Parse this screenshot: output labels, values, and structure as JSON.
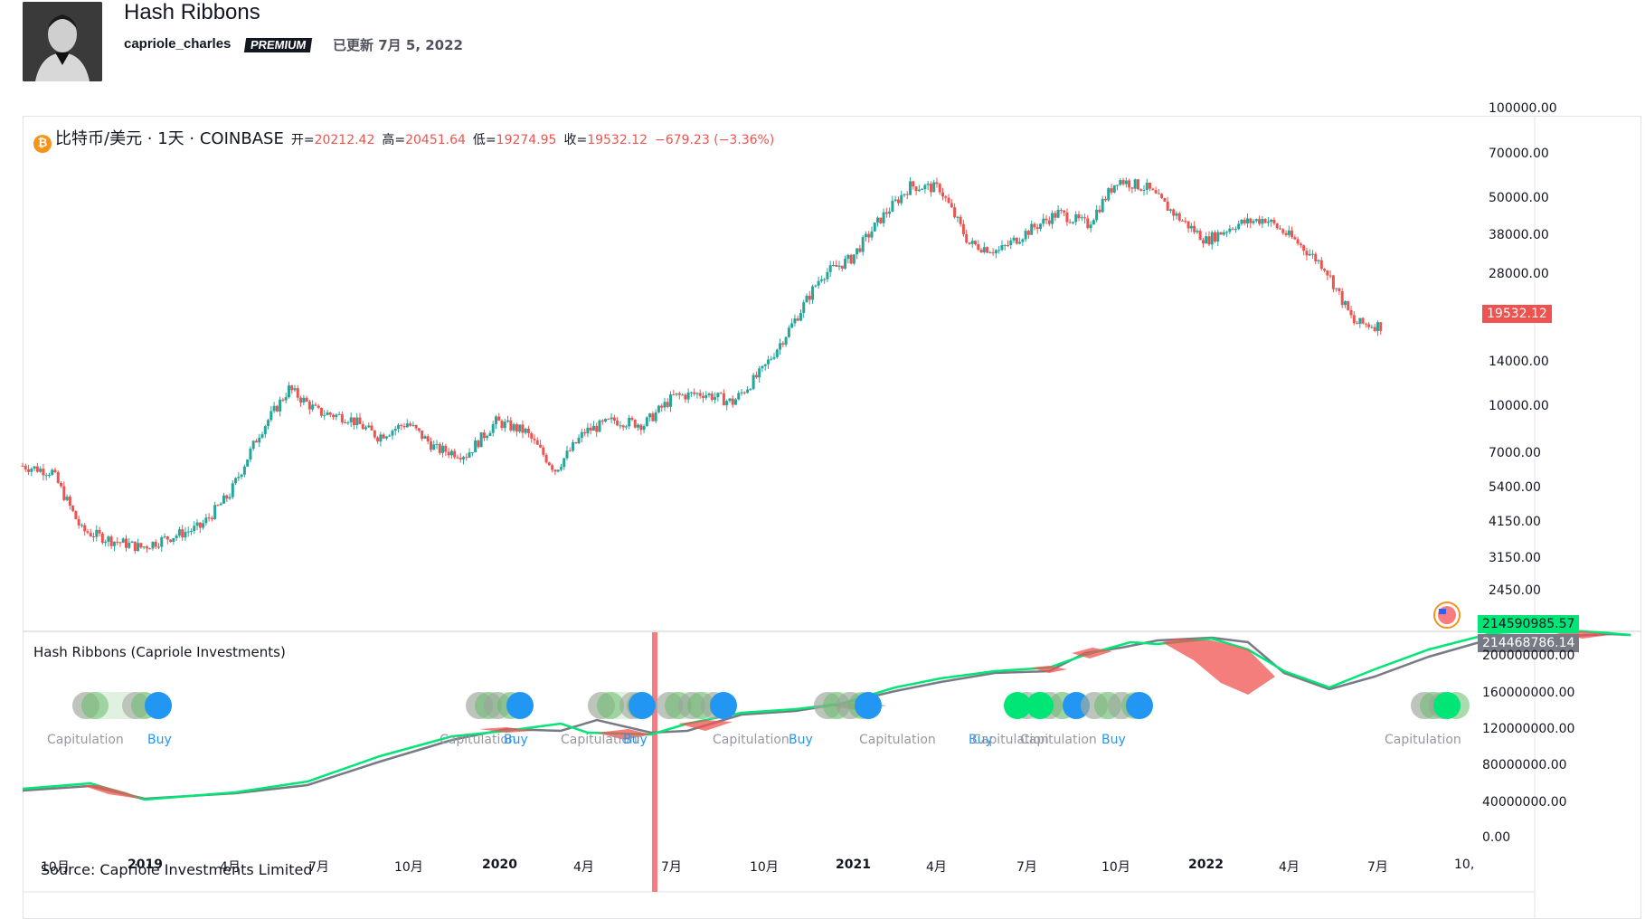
{
  "header": {
    "title": "Hash Ribbons",
    "author": "capriole_charles",
    "badge": "PREMIUM",
    "updated": "已更新 7月 5, 2022"
  },
  "legend": {
    "symbol": "比特币/美元 · 1天 · COINBASE",
    "open_label": "开=",
    "open": "20212.42",
    "high_label": "高=",
    "high": "20451.64",
    "low_label": "低=",
    "low": "19274.95",
    "close_label": "收=",
    "close": "19532.12",
    "change": "−679.23 (−3.36%)"
  },
  "indicator": {
    "title": "Hash Ribbons (Capriole Investments)",
    "source": "Source: Capriole Investments Limited",
    "signals": [
      {
        "text": "Capitulation",
        "kind": "cap"
      },
      {
        "text": "Buy",
        "kind": "buy"
      },
      {
        "text": "Capitulation",
        "kind": "cap"
      },
      {
        "text": "Buy",
        "kind": "buy"
      },
      {
        "text": "Capitulation",
        "kind": "cap"
      },
      {
        "text": "Buy",
        "kind": "buy"
      },
      {
        "text": "Capitulation",
        "kind": "cap"
      },
      {
        "text": "Buy",
        "kind": "buy"
      },
      {
        "text": "Capitulation",
        "kind": "cap"
      },
      {
        "text": "Buy",
        "kind": "buy"
      },
      {
        "text": "Capitulation",
        "kind": "cap"
      },
      {
        "text": "Capitulation",
        "kind": "cap"
      },
      {
        "text": "Buy",
        "kind": "buy"
      },
      {
        "text": "Capitulation",
        "kind": "cap"
      }
    ]
  },
  "price_axis": [
    "100000.00",
    "70000.00",
    "50000.00",
    "38000.00",
    "28000.00",
    "19532.12",
    "14000.00",
    "10000.00",
    "7000.00",
    "5400.00",
    "4150.00",
    "3150.00",
    "2450.00"
  ],
  "hash_axis": [
    "214590985.57",
    "214468786.14",
    "200000000.00",
    "160000000.00",
    "120000000.00",
    "80000000.00",
    "40000000.00",
    "0.00"
  ],
  "time_axis": [
    {
      "label": "10月",
      "bold": false
    },
    {
      "label": "2019",
      "bold": true
    },
    {
      "label": "4月",
      "bold": false
    },
    {
      "label": "7月",
      "bold": false
    },
    {
      "label": "10月",
      "bold": false
    },
    {
      "label": "2020",
      "bold": true
    },
    {
      "label": "4月",
      "bold": false
    },
    {
      "label": "7月",
      "bold": false
    },
    {
      "label": "10月",
      "bold": false
    },
    {
      "label": "2021",
      "bold": true
    },
    {
      "label": "4月",
      "bold": false
    },
    {
      "label": "7月",
      "bold": false
    },
    {
      "label": "10月",
      "bold": false
    },
    {
      "label": "2022",
      "bold": true
    },
    {
      "label": "4月",
      "bold": false
    },
    {
      "label": "7月",
      "bold": false
    },
    {
      "label": "10,",
      "bold": false
    }
  ],
  "colors": {
    "up": "#26a69a",
    "down": "#ef5350",
    "fast_ma": "#00e676",
    "slow_ma": "#787b86",
    "buy": "#2196f3",
    "highlight": "#f23645"
  },
  "chart_data": {
    "type": "candlestick",
    "title": "比特币/美元 · 1天 · COINBASE",
    "price_scale": "log",
    "ylim": [
      2450,
      100000
    ],
    "approx_close_by_month": [
      {
        "x": "2018-09",
        "y": 6600
      },
      {
        "x": "2018-10",
        "y": 6300
      },
      {
        "x": "2018-11",
        "y": 4000
      },
      {
        "x": "2018-12",
        "y": 3700
      },
      {
        "x": "2019-01",
        "y": 3500
      },
      {
        "x": "2019-02",
        "y": 3800
      },
      {
        "x": "2019-03",
        "y": 4100
      },
      {
        "x": "2019-04",
        "y": 5300
      },
      {
        "x": "2019-05",
        "y": 8500
      },
      {
        "x": "2019-06",
        "y": 12000
      },
      {
        "x": "2019-07",
        "y": 10000
      },
      {
        "x": "2019-08",
        "y": 9600
      },
      {
        "x": "2019-09",
        "y": 8300
      },
      {
        "x": "2019-10",
        "y": 9200
      },
      {
        "x": "2019-11",
        "y": 7500
      },
      {
        "x": "2019-12",
        "y": 7200
      },
      {
        "x": "2020-01",
        "y": 9300
      },
      {
        "x": "2020-02",
        "y": 8600
      },
      {
        "x": "2020-03",
        "y": 6400
      },
      {
        "x": "2020-04",
        "y": 8600
      },
      {
        "x": "2020-05",
        "y": 9400
      },
      {
        "x": "2020-06",
        "y": 9100
      },
      {
        "x": "2020-07",
        "y": 11300
      },
      {
        "x": "2020-08",
        "y": 11600
      },
      {
        "x": "2020-09",
        "y": 10800
      },
      {
        "x": "2020-10",
        "y": 13800
      },
      {
        "x": "2020-11",
        "y": 19700
      },
      {
        "x": "2020-12",
        "y": 29000
      },
      {
        "x": "2021-01",
        "y": 33000
      },
      {
        "x": "2021-02",
        "y": 45000
      },
      {
        "x": "2021-03",
        "y": 58000
      },
      {
        "x": "2021-04",
        "y": 57000
      },
      {
        "x": "2021-05",
        "y": 37000
      },
      {
        "x": "2021-06",
        "y": 35000
      },
      {
        "x": "2021-07",
        "y": 41000
      },
      {
        "x": "2021-08",
        "y": 47000
      },
      {
        "x": "2021-09",
        "y": 43000
      },
      {
        "x": "2021-10",
        "y": 61000
      },
      {
        "x": "2021-11",
        "y": 57000
      },
      {
        "x": "2021-12",
        "y": 46000
      },
      {
        "x": "2022-01",
        "y": 38000
      },
      {
        "x": "2022-02",
        "y": 43000
      },
      {
        "x": "2022-03",
        "y": 45000
      },
      {
        "x": "2022-04",
        "y": 38000
      },
      {
        "x": "2022-05",
        "y": 31000
      },
      {
        "x": "2022-06",
        "y": 20000
      },
      {
        "x": "2022-07",
        "y": 19532.12
      }
    ],
    "hash_ribbons": {
      "series": [
        {
          "name": "fast",
          "last": 214590985.57
        },
        {
          "name": "slow",
          "last": 214468786.14
        }
      ],
      "ylim": [
        0,
        240000000
      ]
    }
  }
}
